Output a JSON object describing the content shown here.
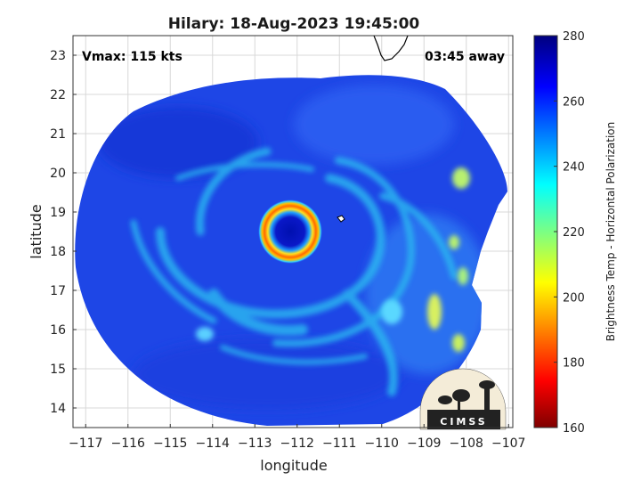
{
  "figure": {
    "title": "Hilary: 18-Aug-2023 19:45:00",
    "vmax_label": "Vmax: 115 kts",
    "away_label": "03:45 away",
    "logo_text": "CIMSS"
  },
  "axes": {
    "xlabel": "longitude",
    "ylabel": "latitude",
    "xlim": [
      -117.3,
      -106.9
    ],
    "ylim": [
      13.5,
      23.5
    ],
    "xticks": [
      -117,
      -116,
      -115,
      -114,
      -113,
      -112,
      -111,
      -110,
      -109,
      -108,
      -107
    ],
    "yticks": [
      14,
      15,
      16,
      17,
      18,
      19,
      20,
      21,
      22,
      23
    ],
    "grid": true
  },
  "colorbar": {
    "label": "Brightness Temp - Horizontal Polarization",
    "range": [
      160,
      280
    ],
    "ticks": [
      160,
      180,
      200,
      220,
      240,
      260,
      280
    ],
    "colormap": "jet",
    "stops": [
      "#7f0000",
      "#ff0000",
      "#ffff00",
      "#00ffff",
      "#0000ff",
      "#00007f"
    ]
  },
  "storm": {
    "name": "Hilary",
    "center_lon": -112.2,
    "center_lat": 18.5,
    "eye_ring_color": "#ff6a00",
    "eye_color": "#0a18c8",
    "swath_base_color": "#1e46e6",
    "rainband_color": "#2ab4f0",
    "warm_cell_color": "#f0e646"
  }
}
